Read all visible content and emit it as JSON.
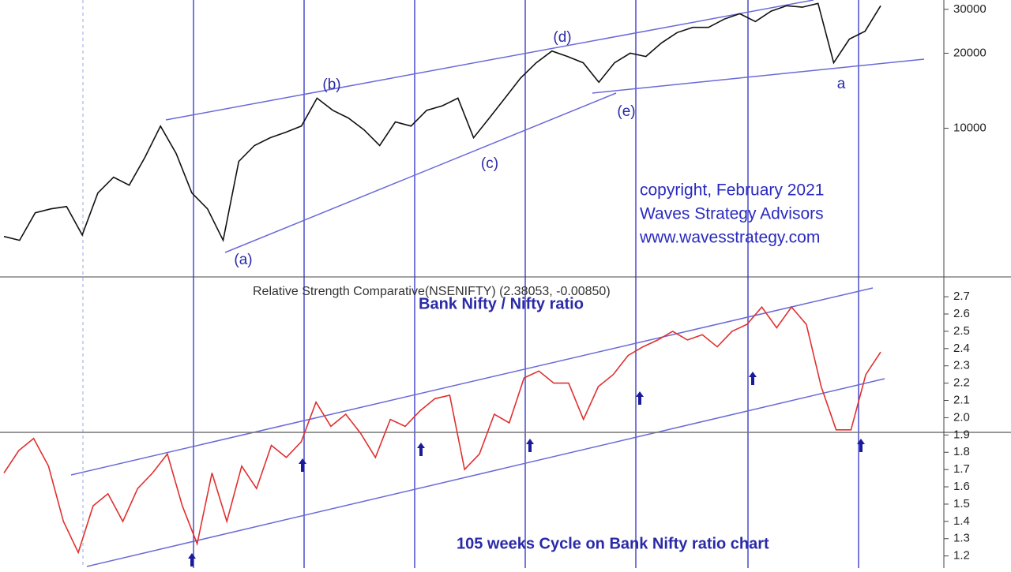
{
  "chart_data": [
    {
      "type": "line",
      "log": true,
      "ylim": [
        2550,
        32700
      ],
      "yticks": [
        10000,
        20000,
        30000
      ],
      "series": [
        {
          "color": "#111111",
          "values": [
            3680,
            3550,
            4580,
            4750,
            4850,
            3730,
            5500,
            6360,
            5910,
            7630,
            10200,
            7920,
            5500,
            4750,
            3550,
            7360,
            8520,
            9160,
            9640,
            10200,
            13200,
            11800,
            10990,
            9850,
            8520,
            10600,
            10200,
            11800,
            12300,
            13200,
            9160,
            10990,
            13200,
            15900,
            18300,
            20400,
            19400,
            18300,
            15300,
            18300,
            20000,
            19400,
            22000,
            24200,
            25400,
            25400,
            27400,
            28800,
            26800,
            29500,
            31000,
            30600,
            31700,
            18300,
            22800,
            24500,
            31000
          ]
        }
      ],
      "annotations": [
        "(a)",
        "(b)",
        "(c)",
        "(d)",
        "(e)",
        "a"
      ],
      "copyright": [
        "copyright, February 2021",
        "Waves Strategy Advisors",
        "www.wavesstrategy.com"
      ]
    },
    {
      "type": "line",
      "title": "Bank Nifty / Nifty ratio",
      "subtitle": "Relative Strength Comparative(NSENIFTY) (2.38053, -0.00850)",
      "annotation": "105 weeks Cycle on Bank Nifty ratio chart",
      "ylim": [
        1.13,
        2.81
      ],
      "yticks": [
        1.2,
        1.3,
        1.4,
        1.5,
        1.6,
        1.7,
        1.8,
        1.9,
        {
          "value": 2,
          "label": "2.0"
        },
        2.1,
        2.2,
        2.3,
        2.4,
        2.5,
        2.6,
        2.7
      ],
      "series": [
        {
          "color": "#e03030",
          "values": [
            1.68,
            1.81,
            1.88,
            1.72,
            1.4,
            1.22,
            1.49,
            1.56,
            1.4,
            1.59,
            1.68,
            1.79,
            1.49,
            1.27,
            1.68,
            1.4,
            1.72,
            1.59,
            1.84,
            1.77,
            1.86,
            2.09,
            1.95,
            2.02,
            1.91,
            1.77,
            1.99,
            1.95,
            2.04,
            2.11,
            2.13,
            1.7,
            1.79,
            2.02,
            1.97,
            2.23,
            2.27,
            2.2,
            2.2,
            1.99,
            2.18,
            2.25,
            2.36,
            2.41,
            2.45,
            2.5,
            2.45,
            2.48,
            2.41,
            2.5,
            2.54,
            2.64,
            2.52,
            2.64,
            2.54,
            2.18,
            1.93,
            1.93,
            2.25,
            2.38
          ]
        }
      ]
    }
  ]
}
